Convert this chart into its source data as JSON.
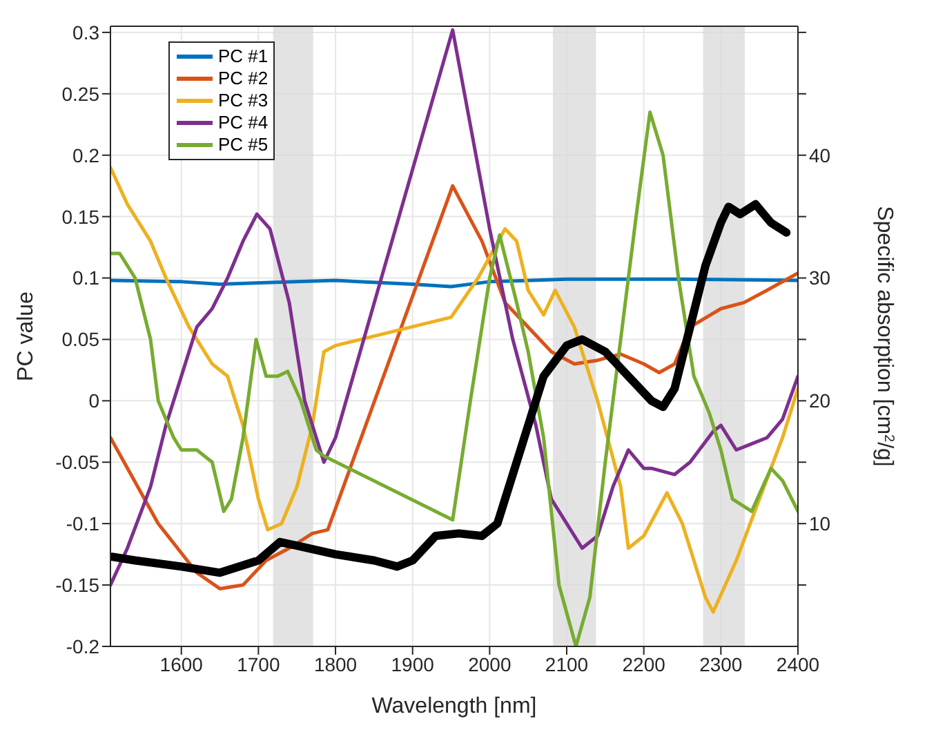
{
  "chart_data": {
    "type": "line",
    "xlabel": "Wavelength [nm]",
    "ylabel": "PC value",
    "y2label": "Specific absorption [cm$^{2}$/g]",
    "xlim": [
      1508,
      2400
    ],
    "xticks": [
      1600,
      1700,
      1800,
      1900,
      2000,
      2100,
      2200,
      2300,
      2400
    ],
    "ylim": [
      -0.2,
      0.305
    ],
    "yticks": [
      -0.2,
      -0.15,
      -0.1,
      -0.05,
      0,
      0.05,
      0.1,
      0.15,
      0.2,
      0.25,
      0.3
    ],
    "y2lim": [
      0,
      50.5
    ],
    "y2ticks": [
      {
        "value": 5,
        "label": null
      },
      10,
      {
        "value": 15,
        "label": null
      },
      20,
      {
        "value": 25,
        "label": null
      },
      30,
      {
        "value": 35,
        "label": null
      },
      40,
      {
        "value": 45,
        "label": null
      },
      {
        "value": 50,
        "label": null
      }
    ],
    "grid": true,
    "legend": "top left",
    "line_style": "solid",
    "marker": "none",
    "bands": [
      {
        "axis": "x",
        "from": 1719,
        "to": 1771,
        "color": "#d9d9d9"
      },
      {
        "axis": "x",
        "from": 2082,
        "to": 2138,
        "color": "#d9d9d9"
      },
      {
        "axis": "x",
        "from": 2277,
        "to": 2331,
        "color": "#d9d9d9"
      }
    ],
    "series": [
      {
        "name": "PC #1",
        "color": "#0072bd",
        "x": [
          1508,
          1600,
          1650,
          1750,
          1800,
          1900,
          1950,
          2000,
          2100,
          2250,
          2400
        ],
        "values": [
          0.098,
          0.097,
          0.095,
          0.097,
          0.098,
          0.095,
          0.093,
          0.097,
          0.099,
          0.099,
          0.098
        ]
      },
      {
        "name": "PC #2",
        "color": "#d95319",
        "x": [
          1508,
          1570,
          1620,
          1650,
          1680,
          1710,
          1740,
          1770,
          1790,
          1952,
          1990,
          2020,
          2050,
          2080,
          2110,
          2140,
          2170,
          2200,
          2220,
          2240,
          2260,
          2300,
          2330,
          2360,
          2400
        ],
        "values": [
          -0.03,
          -0.1,
          -0.14,
          -0.153,
          -0.15,
          -0.13,
          -0.12,
          -0.108,
          -0.105,
          0.175,
          0.13,
          0.08,
          0.06,
          0.04,
          0.03,
          0.033,
          0.038,
          0.03,
          0.023,
          0.03,
          0.06,
          0.075,
          0.08,
          0.09,
          0.104
        ]
      },
      {
        "name": "PC #3",
        "color": "#edb120",
        "x": [
          1508,
          1530,
          1560,
          1580,
          1610,
          1640,
          1660,
          1680,
          1700,
          1712,
          1730,
          1750,
          1770,
          1785,
          1800,
          1950,
          1985,
          2020,
          2035,
          2050,
          2070,
          2085,
          2110,
          2140,
          2170,
          2180,
          2200,
          2230,
          2250,
          2280,
          2290,
          2320,
          2350,
          2380,
          2400
        ],
        "values": [
          0.19,
          0.16,
          0.13,
          0.1,
          0.06,
          0.03,
          0.02,
          -0.02,
          -0.08,
          -0.105,
          -0.1,
          -0.07,
          -0.02,
          0.04,
          0.045,
          0.068,
          0.1,
          0.14,
          0.13,
          0.09,
          0.07,
          0.09,
          0.06,
          0,
          -0.07,
          -0.12,
          -0.11,
          -0.075,
          -0.1,
          -0.16,
          -0.172,
          -0.13,
          -0.08,
          -0.03,
          0.01
        ]
      },
      {
        "name": "PC #4",
        "color": "#7e2f8e",
        "x": [
          1508,
          1530,
          1560,
          1580,
          1600,
          1620,
          1640,
          1660,
          1680,
          1698,
          1715,
          1740,
          1760,
          1785,
          1800,
          1952,
          2000,
          2030,
          2060,
          2080,
          2100,
          2120,
          2140,
          2160,
          2180,
          2200,
          2210,
          2240,
          2260,
          2290,
          2300,
          2320,
          2340,
          2360,
          2380,
          2400
        ],
        "values": [
          -0.15,
          -0.12,
          -0.07,
          -0.02,
          0.02,
          0.06,
          0.075,
          0.1,
          0.13,
          0.152,
          0.14,
          0.08,
          0,
          -0.05,
          -0.03,
          0.302,
          0.14,
          0.05,
          -0.02,
          -0.08,
          -0.1,
          -0.12,
          -0.11,
          -0.07,
          -0.04,
          -0.055,
          -0.055,
          -0.06,
          -0.05,
          -0.025,
          -0.02,
          -0.04,
          -0.035,
          -0.03,
          -0.015,
          0.02
        ]
      },
      {
        "name": "PC #5",
        "color": "#77ac30",
        "x": [
          1508,
          1520,
          1540,
          1560,
          1570,
          1590,
          1600,
          1620,
          1640,
          1655,
          1665,
          1680,
          1697,
          1710,
          1725,
          1738,
          1755,
          1775,
          1785,
          1952,
          1975,
          2000,
          2013,
          2035,
          2050,
          2070,
          2090,
          2112,
          2130,
          2150,
          2170,
          2190,
          2208,
          2225,
          2245,
          2265,
          2285,
          2300,
          2315,
          2340,
          2365,
          2380,
          2400
        ],
        "values": [
          0.12,
          0.12,
          0.1,
          0.05,
          0,
          -0.03,
          -0.04,
          -0.04,
          -0.05,
          -0.09,
          -0.08,
          -0.03,
          0.05,
          0.02,
          0.02,
          0.024,
          0,
          -0.04,
          -0.045,
          -0.097,
          0,
          0.1,
          0.135,
          0.08,
          0.04,
          -0.03,
          -0.15,
          -0.2,
          -0.16,
          -0.05,
          0.05,
          0.15,
          0.235,
          0.2,
          0.1,
          0.02,
          -0.01,
          -0.04,
          -0.08,
          -0.09,
          -0.055,
          -0.065,
          -0.09
        ]
      },
      {
        "color": "#000000",
        "axis": "y2",
        "x": [
          1510,
          1540,
          1600,
          1650,
          1700,
          1728,
          1750,
          1800,
          1850,
          1880,
          1900,
          1930,
          1960,
          1990,
          2010,
          2040,
          2070,
          2100,
          2120,
          2150,
          2180,
          2210,
          2225,
          2240,
          2260,
          2280,
          2300,
          2310,
          2325,
          2345,
          2365,
          2385
        ],
        "values": [
          7.3,
          7,
          6.5,
          6,
          7,
          8.5,
          8.2,
          7.5,
          7,
          6.5,
          7,
          9,
          9.2,
          9,
          10,
          16,
          22,
          24.5,
          25,
          24,
          22,
          20,
          19.5,
          21,
          26,
          31,
          34.5,
          35.8,
          35.2,
          36,
          34.5,
          33.7
        ]
      }
    ]
  }
}
